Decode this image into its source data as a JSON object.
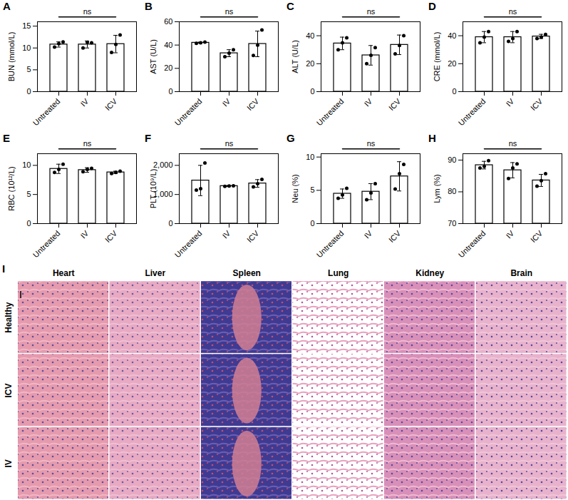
{
  "chart_data": [
    {
      "type": "bar",
      "title": "A",
      "ylabel": "BUN (mmol/L)",
      "categories": [
        "Untreated",
        "IV",
        "ICV"
      ],
      "values": [
        10.8,
        10.8,
        10.9
      ],
      "errors": [
        0.6,
        0.8,
        2.0
      ],
      "points": [
        [
          10.2,
          11.0,
          11.4
        ],
        [
          10.0,
          11.3,
          11.2
        ],
        [
          9.0,
          10.8,
          13.0
        ]
      ],
      "color": "#ffffff",
      "ylim": [
        0,
        16
      ],
      "yticks": [
        0,
        5,
        10,
        15
      ],
      "annotations": [
        {
          "text": "ns",
          "x1": "Untreated",
          "x2": "ICV"
        }
      ]
    },
    {
      "type": "bar",
      "title": "B",
      "ylabel": "AST (U/L)",
      "categories": [
        "Untreated",
        "IV",
        "ICV"
      ],
      "values": [
        42,
        33,
        41
      ],
      "errors": [
        0.5,
        3,
        11
      ],
      "points": [
        [
          41.5,
          42,
          42.5
        ],
        [
          30,
          33,
          36
        ],
        [
          31,
          40,
          53
        ]
      ],
      "color": "#ffffff",
      "ylim": [
        0,
        60
      ],
      "yticks": [
        0,
        20,
        40,
        60
      ],
      "annotations": [
        {
          "text": "ns",
          "x1": "Untreated",
          "x2": "ICV"
        }
      ]
    },
    {
      "type": "bar",
      "title": "C",
      "ylabel": "ALT (U/L)",
      "categories": [
        "Untreated",
        "IV",
        "ICV"
      ],
      "values": [
        34.5,
        26,
        33.5
      ],
      "errors": [
        4.5,
        7,
        7
      ],
      "points": [
        [
          30,
          35,
          38.5
        ],
        [
          20,
          26,
          31.5
        ],
        [
          27,
          33,
          40
        ]
      ],
      "color": "#ffffff",
      "ylim": [
        0,
        50
      ],
      "yticks": [
        0,
        20,
        40
      ],
      "annotations": [
        {
          "text": "ns",
          "x1": "Untreated",
          "x2": "ICV"
        }
      ]
    },
    {
      "type": "bar",
      "title": "D",
      "ylabel": "CRE (mmol/L)",
      "categories": [
        "Untreated",
        "IV",
        "ICV"
      ],
      "values": [
        39,
        39,
        39.5
      ],
      "errors": [
        4,
        4,
        1.5
      ],
      "points": [
        [
          35,
          39,
          43
        ],
        [
          36,
          38,
          43
        ],
        [
          38,
          39,
          41
        ]
      ],
      "color": "#ffffff",
      "ylim": [
        0,
        50
      ],
      "yticks": [
        0,
        20,
        40
      ],
      "annotations": [
        {
          "text": "ns",
          "x1": "Untreated",
          "x2": "ICV"
        }
      ]
    },
    {
      "type": "bar",
      "title": "E",
      "ylabel": "RBC (10¹²/L)",
      "categories": [
        "Untreated",
        "IV",
        "ICV"
      ],
      "values": [
        9.4,
        9.2,
        8.8
      ],
      "errors": [
        0.8,
        0.4,
        0.2
      ],
      "points": [
        [
          8.8,
          9.3,
          10.2
        ],
        [
          8.9,
          9.3,
          9.5
        ],
        [
          8.6,
          8.8,
          9.0
        ]
      ],
      "color": "#ffffff",
      "ylim": [
        0,
        12
      ],
      "yticks": [
        0,
        5,
        10
      ],
      "annotations": [
        {
          "text": "ns",
          "x1": "Untreated",
          "x2": "ICV"
        }
      ]
    },
    {
      "type": "bar",
      "title": "F",
      "ylabel": "PLT (10⁹/L)",
      "categories": [
        "Untreated",
        "IV",
        "ICV"
      ],
      "values": [
        1480,
        1290,
        1380
      ],
      "errors": [
        520,
        15,
        130
      ],
      "points": [
        [
          1150,
          1200,
          2080
        ],
        [
          1280,
          1290,
          1300
        ],
        [
          1260,
          1370,
          1520
        ]
      ],
      "color": "#ffffff",
      "ylim": [
        0,
        2400
      ],
      "yticks": [
        0,
        1000,
        2000
      ],
      "annotations": [
        {
          "text": "ns",
          "x1": "Untreated",
          "x2": "ICV"
        }
      ]
    },
    {
      "type": "bar",
      "title": "G",
      "ylabel": "Neu (%)",
      "categories": [
        "Untreated",
        "IV",
        "ICV"
      ],
      "values": [
        4.5,
        4.8,
        7.1
      ],
      "errors": [
        0.7,
        1.2,
        2.2
      ],
      "points": [
        [
          3.8,
          4.3,
          5.3
        ],
        [
          3.6,
          4.6,
          6.0
        ],
        [
          5.2,
          7.5,
          8.9
        ]
      ],
      "color": "#ffffff",
      "ylim": [
        0,
        10.5
      ],
      "yticks": [
        0,
        5,
        10
      ],
      "annotations": [
        {
          "text": "ns",
          "x1": "Untreated",
          "x2": "ICV"
        }
      ]
    },
    {
      "type": "bar",
      "title": "H",
      "ylabel": "Lym (%)",
      "categories": [
        "Untreated",
        "IV",
        "ICV"
      ],
      "values": [
        88.4,
        86.8,
        83.6
      ],
      "errors": [
        1.2,
        2.4,
        1.9
      ],
      "points": [
        [
          87.5,
          88.0,
          89.8
        ],
        [
          84.2,
          87.5,
          88.8
        ],
        [
          81.8,
          83.5,
          85.7
        ]
      ],
      "color": "#ffffff",
      "ylim": [
        70,
        92
      ],
      "yticks": [
        70,
        80,
        90
      ],
      "annotations": [
        {
          "text": "ns",
          "x1": "Untreated",
          "x2": "ICV"
        }
      ]
    }
  ],
  "histology": {
    "label": "I",
    "columns": [
      "Heart",
      "Liver",
      "Spleen",
      "Lung",
      "Kidney",
      "Brain"
    ],
    "rows": [
      "Healthy",
      "ICV",
      "IV"
    ]
  }
}
